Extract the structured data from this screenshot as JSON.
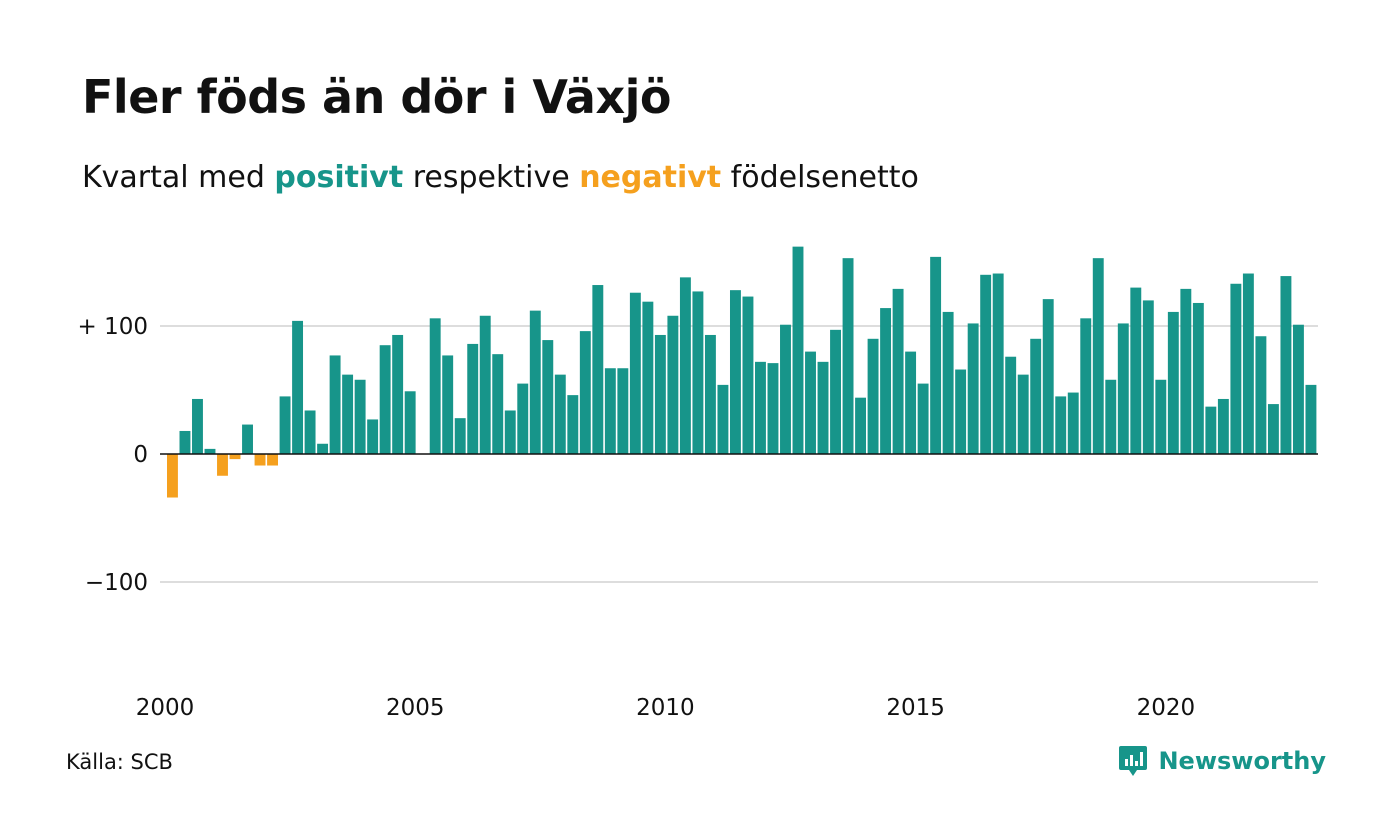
{
  "title": "Fler föds än dör i Växjö",
  "subtitle": {
    "prefix": "Kvartal med ",
    "positive_word": "positivt",
    "middle": " respektive ",
    "negative_word": "negativt",
    "suffix": " födelsenetto"
  },
  "source": "Källa: SCB",
  "brand": "Newsworthy",
  "colors": {
    "positive": "#17958a",
    "negative": "#f5a01e",
    "grid": "#dddddd",
    "zero_line": "#111111"
  },
  "chart_data": {
    "type": "bar",
    "x_start": "2000-Q1",
    "x_ticks": [
      "2000",
      "2005",
      "2010",
      "2015",
      "2020"
    ],
    "y_ticks": [
      "+ 100",
      "0",
      "−100"
    ],
    "ylim": [
      -180,
      165
    ],
    "grid": true,
    "values": [
      -34,
      18,
      43,
      4,
      -17,
      -4,
      23,
      -9,
      -9,
      45,
      104,
      34,
      8,
      77,
      62,
      58,
      27,
      85,
      93,
      49,
      0,
      106,
      77,
      28,
      86,
      108,
      78,
      34,
      55,
      112,
      89,
      62,
      46,
      96,
      132,
      67,
      67,
      126,
      119,
      93,
      108,
      138,
      127,
      93,
      54,
      128,
      123,
      72,
      71,
      101,
      162,
      80,
      72,
      97,
      153,
      44,
      90,
      114,
      129,
      80,
      55,
      154,
      111,
      66,
      102,
      140,
      141,
      76,
      62,
      90,
      121,
      45,
      48,
      106,
      153,
      58,
      102,
      130,
      120,
      58,
      111,
      129,
      118,
      37,
      43,
      133,
      141,
      92,
      39,
      139,
      101,
      54
    ]
  }
}
